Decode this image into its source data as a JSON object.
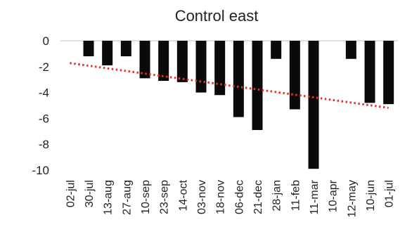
{
  "chart_data": {
    "type": "bar",
    "title": "Control east",
    "xlabel": "",
    "ylabel": "",
    "categories": [
      "02-jul",
      "30-jul",
      "13-aug",
      "27-aug",
      "10-sep",
      "23-sep",
      "14-oct",
      "03-nov",
      "18-nov",
      "06-dec",
      "21-dec",
      "28-jan",
      "11-feb",
      "11-mar",
      "10-apr",
      "12-may",
      "10-jun",
      "01-jul"
    ],
    "values": [
      0,
      -1.2,
      -1.9,
      -1.2,
      -2.9,
      -3.1,
      -3.2,
      -4.0,
      -4.2,
      -5.9,
      -6.9,
      -1.4,
      -5.3,
      -9.9,
      0,
      -1.4,
      -4.8,
      -4.9
    ],
    "ylim": [
      -10,
      0
    ],
    "yticks": [
      "0",
      "-2",
      "-4",
      "-6",
      "-8",
      "-10"
    ],
    "grid": false,
    "legend": "none",
    "trendline": {
      "type": "linear",
      "style": "dotted",
      "color": "#e8312a"
    },
    "colors": {
      "bar": "#0a0a0a",
      "trendline": "#e8312a"
    }
  }
}
